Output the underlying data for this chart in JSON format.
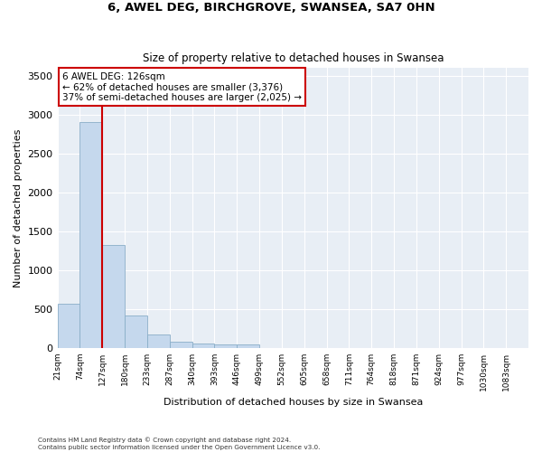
{
  "title": "6, AWEL DEG, BIRCHGROVE, SWANSEA, SA7 0HN",
  "subtitle": "Size of property relative to detached houses in Swansea",
  "xlabel": "Distribution of detached houses by size in Swansea",
  "ylabel": "Number of detached properties",
  "categories": [
    "21sqm",
    "74sqm",
    "127sqm",
    "180sqm",
    "233sqm",
    "287sqm",
    "340sqm",
    "393sqm",
    "446sqm",
    "499sqm",
    "552sqm",
    "605sqm",
    "658sqm",
    "711sqm",
    "764sqm",
    "818sqm",
    "871sqm",
    "924sqm",
    "977sqm",
    "1030sqm",
    "1083sqm"
  ],
  "values": [
    570,
    2900,
    1320,
    415,
    170,
    80,
    50,
    45,
    40,
    0,
    0,
    0,
    0,
    0,
    0,
    0,
    0,
    0,
    0,
    0,
    0
  ],
  "bar_color": "#c5d8ed",
  "bar_edge_color": "#8aaec8",
  "vline_color": "#cc0000",
  "vline_position": 2,
  "annotation_text": "6 AWEL DEG: 126sqm\n← 62% of detached houses are smaller (3,376)\n37% of semi-detached houses are larger (2,025) →",
  "annotation_box_color": "#ffffff",
  "annotation_box_edge": "#cc0000",
  "ylim": [
    0,
    3600
  ],
  "yticks": [
    0,
    500,
    1000,
    1500,
    2000,
    2500,
    3000,
    3500
  ],
  "background_color": "#e8eef5",
  "grid_color": "#ffffff",
  "footer_line1": "Contains HM Land Registry data © Crown copyright and database right 2024.",
  "footer_line2": "Contains public sector information licensed under the Open Government Licence v3.0."
}
